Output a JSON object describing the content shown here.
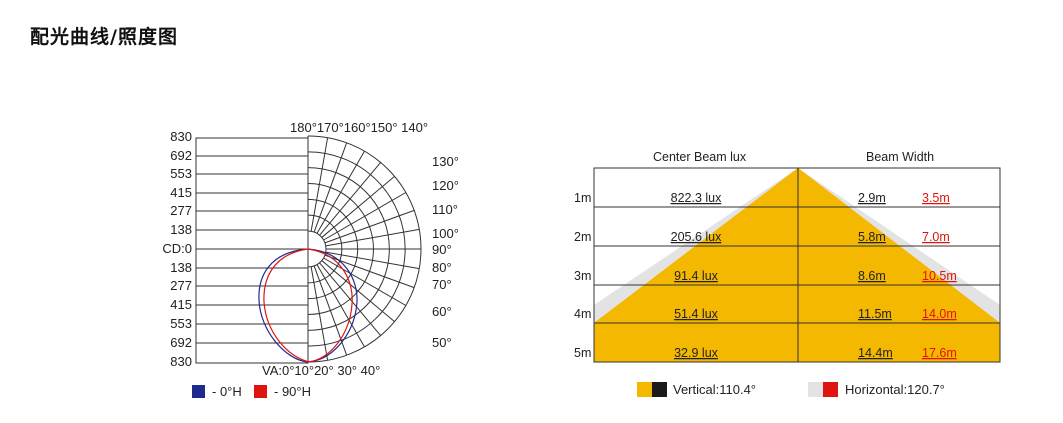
{
  "title": "配光曲线/照度图",
  "polar": {
    "cd_labels": [
      "830",
      "692",
      "553",
      "415",
      "277",
      "138",
      "CD:0",
      "138",
      "277",
      "415",
      "553",
      "692",
      "830"
    ],
    "top_angles": "180°170°160°150° 140°",
    "right_angles": [
      "130°",
      "120°",
      "110°",
      "100°",
      "90°",
      "80°",
      "70°",
      "60°",
      "50°"
    ],
    "bottom_angles": "VA:0°10°20° 30°   40°",
    "legend": [
      {
        "label": "- 0°H",
        "color": "#1f2a8f"
      },
      {
        "label": "- 90°H",
        "color": "#e0140f"
      }
    ]
  },
  "illuminance": {
    "header_lux": "Center Beam lux",
    "header_width": "Beam Width",
    "rows": [
      {
        "dist": "1m",
        "lux": "822.3 lux",
        "v_width": "2.9m",
        "h_width": "3.5m"
      },
      {
        "dist": "2m",
        "lux": "205.6 lux",
        "v_width": "5.8m",
        "h_width": "7.0m"
      },
      {
        "dist": "3m",
        "lux": "91.4 lux",
        "v_width": "8.6m",
        "h_width": "10.5m"
      },
      {
        "dist": "4m",
        "lux": "51.4 lux",
        "v_width": "11.5m",
        "h_width": "14.0m"
      },
      {
        "dist": "5m",
        "lux": "32.9 lux",
        "v_width": "14.4m",
        "h_width": "17.6m"
      }
    ],
    "legend_vertical": "Vertical:110.4°",
    "legend_horizontal": "Horizontal:120.7°",
    "colors": {
      "beam": "#f5b800",
      "beam_h": "#e3e3e3",
      "dark": "#1a1a1a",
      "red": "#e0140f"
    }
  }
}
